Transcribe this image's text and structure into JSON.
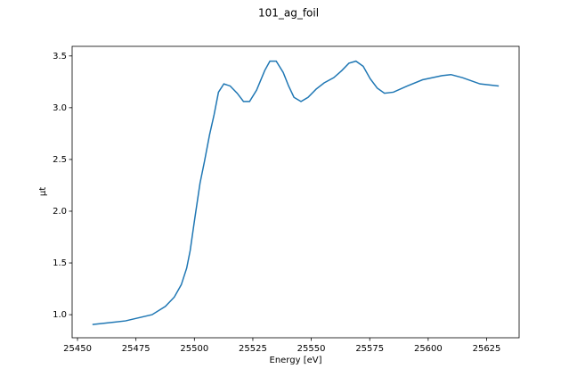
{
  "chart_data": {
    "type": "line",
    "title": "101_ag_foil",
    "x_label": "Energy [eV]",
    "y_label": "μt",
    "x": [
      25456.4,
      25470.5,
      25481.9,
      25487.6,
      25491.4,
      25494.4,
      25496.7,
      25498.2,
      25500.1,
      25502.4,
      25504.3,
      25506.5,
      25508.4,
      25510.3,
      25512.6,
      25515.3,
      25518.3,
      25521.0,
      25523.6,
      25526.6,
      25530.1,
      25532.3,
      25535.0,
      25538.0,
      25540.3,
      25542.6,
      25545.6,
      25548.6,
      25552.1,
      25555.5,
      25559.6,
      25563.1,
      25566.1,
      25569.1,
      25572.2,
      25575.2,
      25578.2,
      25581.3,
      25585.1,
      25591.1,
      25597.6,
      25605.9,
      25609.7,
      25614.7,
      25622.2,
      25630.2
    ],
    "series": [
      {
        "name": "101_ag_foil",
        "color": "#1f77b4",
        "values": [
          0.905,
          0.94,
          1.0,
          1.08,
          1.17,
          1.29,
          1.45,
          1.62,
          1.92,
          2.27,
          2.48,
          2.74,
          2.93,
          3.15,
          3.23,
          3.21,
          3.14,
          3.06,
          3.06,
          3.17,
          3.36,
          3.45,
          3.45,
          3.34,
          3.21,
          3.1,
          3.06,
          3.1,
          3.18,
          3.24,
          3.29,
          3.36,
          3.43,
          3.45,
          3.4,
          3.28,
          3.19,
          3.14,
          3.15,
          3.21,
          3.27,
          3.31,
          3.32,
          3.29,
          3.23,
          3.21
        ]
      }
    ],
    "xlim": [
      25447.7,
      25638.9
    ],
    "ylim": [
      0.777,
      3.593
    ],
    "xticks": [
      25450,
      25475,
      25500,
      25525,
      25550,
      25575,
      25600,
      25625
    ],
    "yticks": [
      {
        "value": 1,
        "label": "1.0"
      },
      1.5,
      {
        "value": 2,
        "label": "2.0"
      },
      2.5,
      {
        "value": 3,
        "label": "3.0"
      },
      3.5
    ],
    "grid": false
  }
}
